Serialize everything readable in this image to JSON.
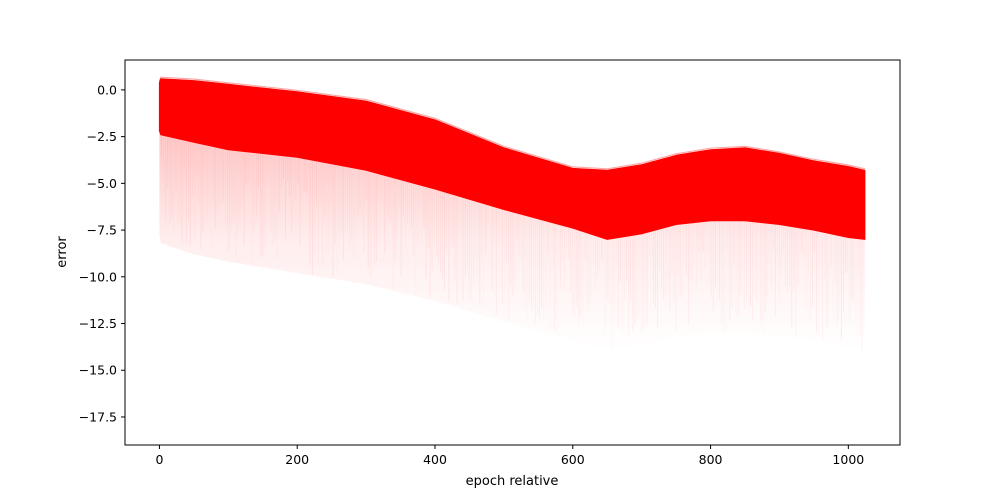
{
  "chart_data": {
    "type": "area",
    "title": "",
    "xlabel": "epoch relative",
    "ylabel": "error",
    "xlim": [
      -50,
      1075
    ],
    "ylim": [
      -19.0,
      1.6
    ],
    "xticks": [
      0,
      200,
      400,
      600,
      800,
      1000
    ],
    "yticks": [
      0.0,
      -2.5,
      -5.0,
      -7.5,
      -10.0,
      -12.5,
      -15.0,
      -17.5
    ],
    "xtick_labels": [
      "0",
      "200",
      "400",
      "600",
      "800",
      "1000"
    ],
    "ytick_labels": [
      "0.0",
      "−2.5",
      "−5.0",
      "−7.5",
      "−10.0",
      "−12.5",
      "−15.0",
      "−17.5"
    ],
    "grid": false,
    "legend": "none",
    "color": "#ff0000",
    "series": [
      {
        "role": "upper-envelope",
        "x": [
          0,
          2,
          50,
          100,
          200,
          300,
          400,
          500,
          600,
          650,
          700,
          750,
          800,
          850,
          900,
          950,
          1000,
          1024
        ],
        "values": [
          0.4,
          0.6,
          0.5,
          0.3,
          -0.1,
          -0.6,
          -1.6,
          -3.1,
          -4.2,
          -4.3,
          -4.0,
          -3.5,
          -3.2,
          -3.1,
          -3.4,
          -3.8,
          -4.1,
          -4.3
        ]
      },
      {
        "role": "dense-lower-edge",
        "x": [
          0,
          2,
          50,
          100,
          200,
          300,
          400,
          500,
          600,
          650,
          700,
          750,
          800,
          850,
          900,
          950,
          1000,
          1024
        ],
        "values": [
          -2.2,
          -2.4,
          -2.8,
          -3.2,
          -3.6,
          -4.3,
          -5.3,
          -6.4,
          -7.4,
          -8.0,
          -7.7,
          -7.2,
          -7.0,
          -7.0,
          -7.2,
          -7.5,
          -7.9,
          -8.0
        ]
      },
      {
        "role": "faint-lower-edge",
        "x": [
          0,
          2,
          50,
          100,
          200,
          300,
          400,
          500,
          600,
          650,
          700,
          750,
          800,
          850,
          900,
          950,
          1000,
          1024
        ],
        "values": [
          -7.8,
          -8.2,
          -8.8,
          -9.2,
          -9.8,
          -10.4,
          -11.3,
          -12.4,
          -13.4,
          -14.0,
          -13.6,
          -13.2,
          -13.0,
          -13.0,
          -13.2,
          -13.4,
          -13.8,
          -14.0
        ]
      }
    ]
  }
}
